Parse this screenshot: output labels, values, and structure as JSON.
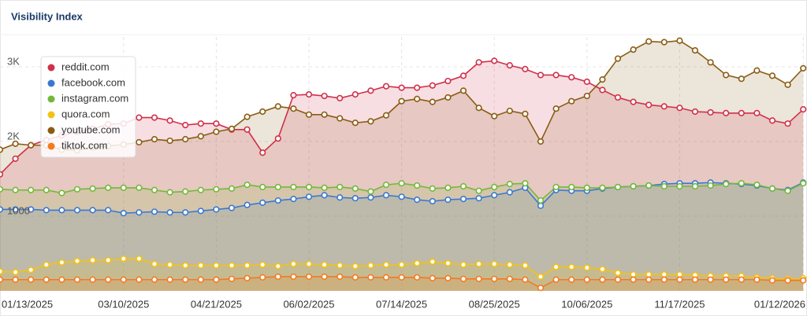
{
  "chart_data": {
    "type": "area",
    "title": "Visibility Index",
    "categories": [
      "01/13/2025",
      null,
      null,
      null,
      null,
      null,
      null,
      null,
      "03/10/2025",
      null,
      null,
      null,
      null,
      null,
      "04/21/2025",
      null,
      null,
      null,
      null,
      null,
      "06/02/2025",
      null,
      null,
      null,
      null,
      null,
      "07/14/2025",
      null,
      null,
      null,
      null,
      null,
      "08/25/2025",
      null,
      null,
      null,
      null,
      null,
      "10/06/2025",
      null,
      null,
      null,
      null,
      null,
      "11/17/2025",
      null,
      null,
      null,
      null,
      null,
      null,
      null,
      "01/12/2026"
    ],
    "series": [
      {
        "name": "reddit.com",
        "color": "#d0304a",
        "values": [
          1560,
          1770,
          1950,
          2020,
          2080,
          2130,
          2170,
          2230,
          2240,
          2320,
          2320,
          2280,
          2220,
          2240,
          2240,
          2160,
          2160,
          1850,
          2040,
          2620,
          2630,
          2610,
          2580,
          2630,
          2680,
          2740,
          2720,
          2720,
          2750,
          2810,
          2880,
          3060,
          3080,
          3020,
          2970,
          2890,
          2890,
          2860,
          2800,
          2690,
          2590,
          2530,
          2490,
          2470,
          2450,
          2400,
          2390,
          2380,
          2380,
          2380,
          2280,
          2240,
          2430
        ]
      },
      {
        "name": "facebook.com",
        "color": "#3b78d0",
        "values": [
          1090,
          1090,
          1090,
          1080,
          1080,
          1080,
          1080,
          1080,
          1040,
          1050,
          1060,
          1050,
          1050,
          1070,
          1090,
          1110,
          1150,
          1180,
          1210,
          1230,
          1260,
          1280,
          1250,
          1240,
          1250,
          1280,
          1260,
          1220,
          1200,
          1220,
          1230,
          1240,
          1280,
          1320,
          1380,
          1140,
          1350,
          1340,
          1340,
          1370,
          1390,
          1400,
          1410,
          1430,
          1440,
          1440,
          1450,
          1440,
          1430,
          1410,
          1370,
          1350,
          1450
        ]
      },
      {
        "name": "instagram.com",
        "color": "#74b83a",
        "values": [
          1360,
          1350,
          1350,
          1350,
          1310,
          1360,
          1370,
          1380,
          1380,
          1380,
          1350,
          1320,
          1330,
          1350,
          1360,
          1370,
          1420,
          1390,
          1390,
          1390,
          1390,
          1380,
          1390,
          1370,
          1330,
          1420,
          1440,
          1410,
          1370,
          1380,
          1400,
          1340,
          1390,
          1430,
          1440,
          1210,
          1390,
          1390,
          1380,
          1380,
          1390,
          1400,
          1410,
          1400,
          1400,
          1400,
          1410,
          1430,
          1440,
          1420,
          1370,
          1340,
          1440
        ]
      },
      {
        "name": "quora.com",
        "color": "#f4c214",
        "values": [
          260,
          250,
          280,
          350,
          380,
          400,
          410,
          410,
          430,
          430,
          360,
          350,
          340,
          340,
          340,
          340,
          340,
          350,
          330,
          360,
          360,
          350,
          340,
          330,
          340,
          350,
          350,
          370,
          390,
          370,
          350,
          360,
          360,
          350,
          340,
          190,
          320,
          320,
          310,
          290,
          240,
          220,
          220,
          220,
          220,
          210,
          200,
          200,
          200,
          180,
          170,
          160,
          170
        ]
      },
      {
        "name": "youtube.com",
        "color": "#8a5c12",
        "values": [
          1890,
          1970,
          1950,
          1950,
          1890,
          1880,
          1920,
          1940,
          1960,
          1990,
          2030,
          2010,
          2030,
          2070,
          2130,
          2170,
          2330,
          2400,
          2470,
          2440,
          2360,
          2360,
          2310,
          2250,
          2270,
          2350,
          2540,
          2570,
          2530,
          2590,
          2680,
          2450,
          2340,
          2410,
          2370,
          2000,
          2440,
          2540,
          2610,
          2830,
          3110,
          3230,
          3340,
          3330,
          3350,
          3220,
          3060,
          2890,
          2840,
          2950,
          2880,
          2760,
          2980
        ]
      },
      {
        "name": "tiktok.com",
        "color": "#f47a1f",
        "values": [
          150,
          150,
          150,
          150,
          150,
          150,
          150,
          150,
          150,
          150,
          150,
          150,
          150,
          150,
          150,
          160,
          170,
          180,
          190,
          190,
          190,
          190,
          190,
          180,
          180,
          180,
          180,
          180,
          170,
          170,
          160,
          160,
          160,
          160,
          150,
          40,
          150,
          150,
          150,
          150,
          150,
          150,
          150,
          150,
          150,
          150,
          150,
          150,
          150,
          150,
          140,
          140,
          140
        ]
      }
    ],
    "ylim": [
      0,
      3400
    ],
    "yticks": [
      1000,
      {
        "value": 2000,
        "label": "2K"
      },
      {
        "value": 3000,
        "label": "3K"
      }
    ],
    "grid": true,
    "legend": "upper left"
  }
}
